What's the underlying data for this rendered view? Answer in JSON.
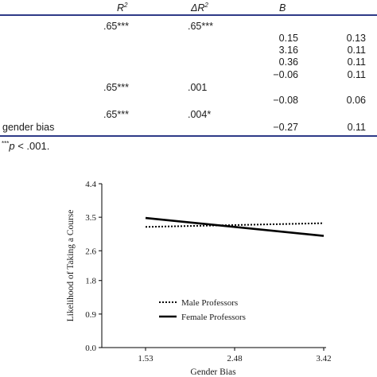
{
  "table": {
    "headers": {
      "r2": "R",
      "r2_sup": "2",
      "delta": "ΔR",
      "delta_sup": "2",
      "b": "B"
    },
    "rows": [
      {
        "label": "",
        "r2": ".65***",
        "dr2": ".65***",
        "b": "",
        "se": ""
      },
      {
        "label": "",
        "r2": "",
        "dr2": "",
        "b": "0.15",
        "se": "0.13"
      },
      {
        "label": "",
        "r2": "",
        "dr2": "",
        "b": "3.16",
        "se": "0.11"
      },
      {
        "label": "",
        "r2": "",
        "dr2": "",
        "b": "0.36",
        "se": "0.11"
      },
      {
        "label": "",
        "r2": "",
        "dr2": "",
        "b": "−0.06",
        "se": "0.11"
      },
      {
        "label": "",
        "r2": ".65***",
        "dr2": ".001",
        "b": "",
        "se": ""
      },
      {
        "label": "",
        "r2": "",
        "dr2": "",
        "b": "−0.08",
        "se": "0.06"
      },
      {
        "label": "",
        "r2": ".65***",
        "dr2": ".004*",
        "b": "",
        "se": ""
      },
      {
        "label": "gender bias",
        "r2": "",
        "dr2": "",
        "b": "−0.27",
        "se": "0.11"
      }
    ],
    "note_stars": "***",
    "note_p": "p",
    "note_text": " < .001."
  },
  "chart_data": {
    "type": "line",
    "xlabel": "Gender Bias",
    "ylabel": "Likelihood of Taking a Course",
    "x": [
      1.53,
      3.42
    ],
    "x_ticks": [
      "1.53",
      "2.48",
      "3.42"
    ],
    "y_ticks": [
      "0.0",
      "0.9",
      "1.8",
      "2.6",
      "3.5",
      "4.4"
    ],
    "ylim": [
      0.0,
      4.4
    ],
    "series": [
      {
        "name": "Male Professors",
        "style": "dotted",
        "values": [
          3.24,
          3.34
        ]
      },
      {
        "name": "Female Professors",
        "style": "solid",
        "values": [
          3.48,
          3.0
        ]
      }
    ],
    "legend_position": "bottom-left inside plot",
    "grid": false
  }
}
